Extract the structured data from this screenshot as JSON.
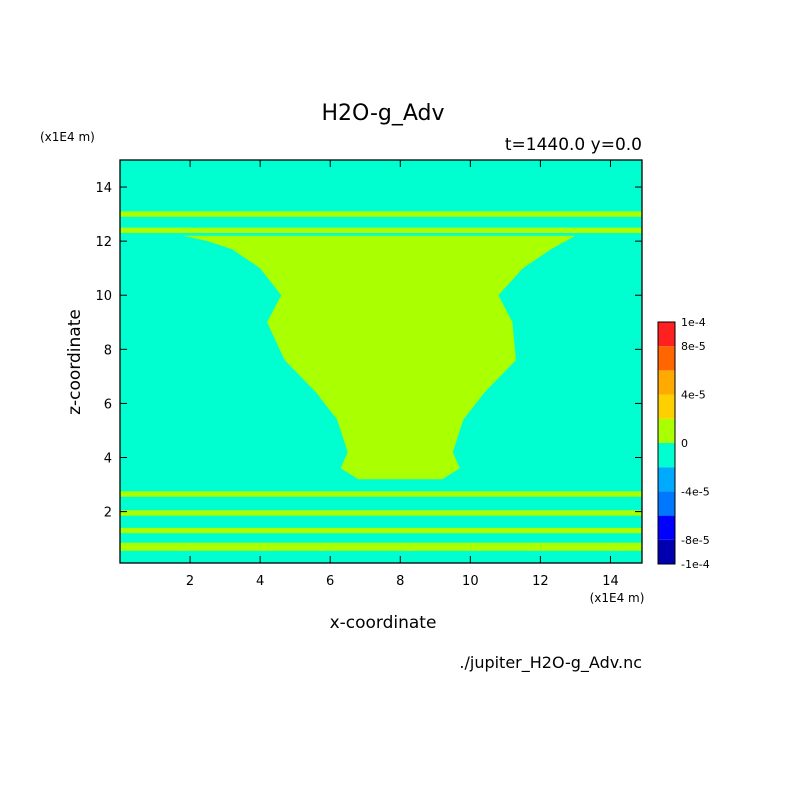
{
  "chart_data": {
    "type": "heatmap",
    "title": "H2O-g_Adv",
    "subtitle": "t=1440.0 y=0.0",
    "xlabel": "x-coordinate",
    "ylabel": "z-coordinate",
    "x_unit": "(x1E4 m)",
    "y_unit": "(x1E4 m)",
    "source_file": "./jupiter_H2O-g_Adv.nc",
    "xlim": [
      0.0,
      14.9
    ],
    "ylim": [
      0.1,
      15.0
    ],
    "x_ticks": [
      2,
      4,
      6,
      8,
      10,
      12,
      14
    ],
    "y_ticks": [
      2,
      4,
      6,
      8,
      10,
      12,
      14
    ],
    "colorbar": {
      "tick_labels": [
        "1e-4",
        "8e-5",
        "4e-5",
        "0",
        "-4e-5",
        "-8e-5",
        "-1e-4"
      ],
      "tick_values": [
        0.0001,
        8e-05,
        4e-05,
        0,
        -4e-05,
        -8e-05,
        -0.0001
      ],
      "levels": [
        -0.0001,
        -8e-05,
        -6e-05,
        -4e-05,
        -2e-05,
        0,
        2e-05,
        4e-05,
        6e-05,
        8e-05,
        0.0001
      ],
      "colors": [
        "#0000b0",
        "#0000ff",
        "#0077ff",
        "#00aaff",
        "#00ffd0",
        "#aaff00",
        "#ffd000",
        "#ffaa00",
        "#ff6600",
        "#ff2020"
      ]
    },
    "background_level_color": "#00ffd0",
    "feature_level_color": "#aaff00",
    "plume_outline": {
      "x": [
        1.8,
        2.5,
        3.2,
        4.0,
        4.6,
        4.2,
        4.7,
        5.6,
        6.2,
        6.5,
        6.3,
        6.8,
        7.4,
        8.0,
        8.6,
        9.2,
        9.7,
        9.5,
        9.8,
        10.4,
        11.3,
        11.2,
        10.8,
        11.5,
        12.3,
        13.0
      ],
      "z": [
        12.2,
        12.0,
        11.7,
        11.0,
        10.0,
        9.0,
        7.6,
        6.4,
        5.4,
        4.2,
        3.6,
        3.2,
        3.2,
        3.2,
        3.2,
        3.2,
        3.6,
        4.2,
        5.4,
        6.4,
        7.6,
        9.0,
        10.0,
        11.0,
        11.7,
        12.2
      ]
    },
    "horizontal_bands": [
      {
        "z_min": 12.3,
        "z_max": 12.5
      },
      {
        "z_min": 12.9,
        "z_max": 13.1
      },
      {
        "z_min": 2.55,
        "z_max": 2.75
      },
      {
        "z_min": 1.85,
        "z_max": 2.05
      },
      {
        "z_min": 1.2,
        "z_max": 1.4
      },
      {
        "z_min": 0.55,
        "z_max": 0.85
      }
    ],
    "grid": false
  }
}
